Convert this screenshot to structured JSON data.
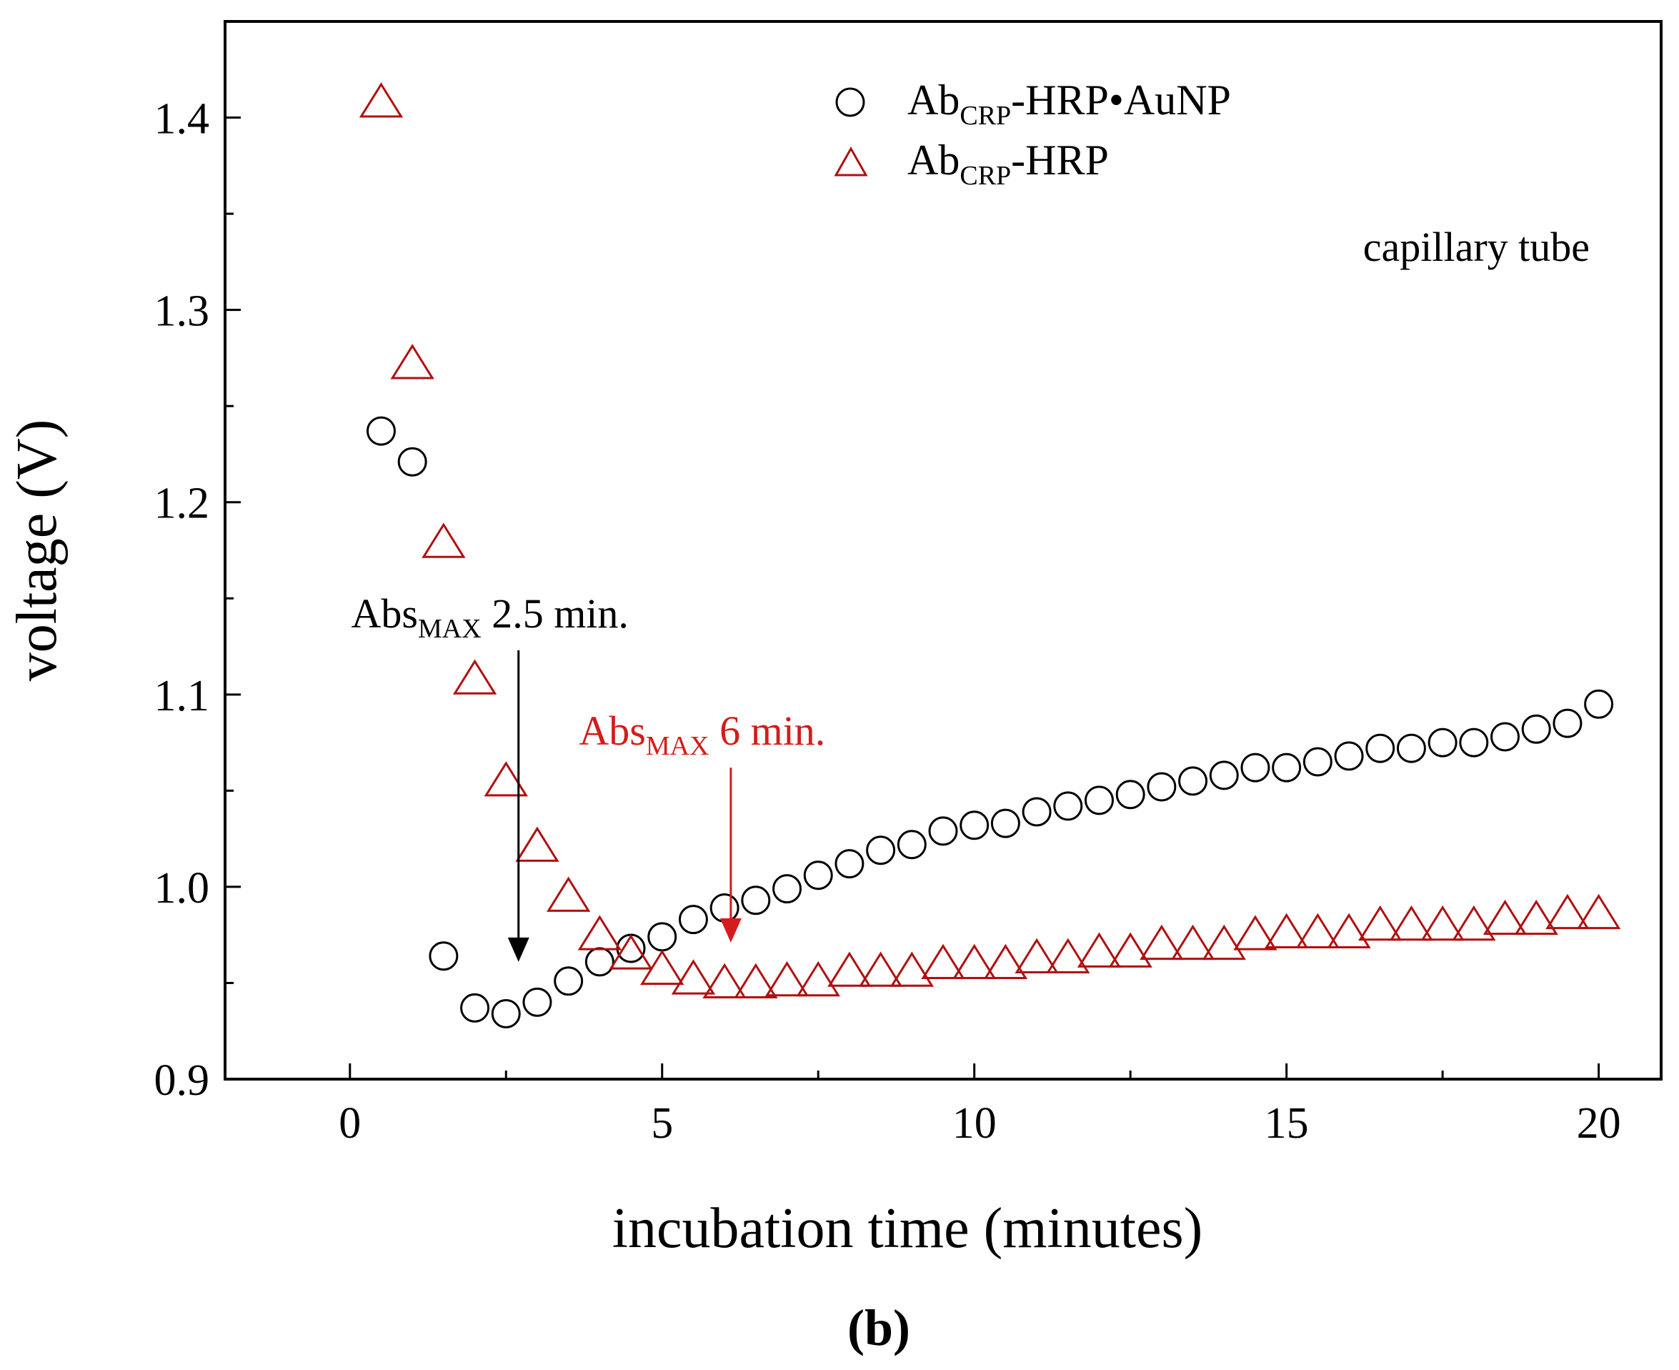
{
  "chart_data": {
    "type": "scatter",
    "xlabel": "incubation time (minutes)",
    "ylabel": "voltage (V)",
    "xlim": [
      -2,
      21
    ],
    "ylim": [
      0.9,
      1.45
    ],
    "xticks": [
      0,
      5,
      10,
      15,
      20
    ],
    "xtick_labels": [
      "0",
      "5",
      "10",
      "15",
      "20"
    ],
    "yticks": [
      0.9,
      1.0,
      1.1,
      1.2,
      1.3,
      1.4
    ],
    "ytick_labels": [
      "0.9",
      "1.0",
      "1.1",
      "1.2",
      "1.3",
      "1.4"
    ],
    "grid": false,
    "legend_position": "top-right",
    "series": [
      {
        "name": "AbCRP-HRP•AuNP",
        "name_parts": {
          "base": "Ab",
          "sub": "CRP",
          "rest": "-HRP•AuNP"
        },
        "marker": "circle",
        "color": "#000000",
        "x": [
          0.5,
          1.0,
          1.5,
          2.0,
          2.5,
          3.0,
          3.5,
          4.0,
          4.5,
          5.0,
          5.5,
          6.0,
          6.5,
          7.0,
          7.5,
          8.0,
          8.5,
          9.0,
          9.5,
          10.0,
          10.5,
          11.0,
          11.5,
          12.0,
          12.5,
          13.0,
          13.5,
          14.0,
          14.5,
          15.0,
          15.5,
          16.0,
          16.5,
          17.0,
          17.5,
          18.0,
          18.5,
          19.0,
          19.5,
          20.0
        ],
        "values": [
          1.237,
          1.221,
          0.964,
          0.937,
          0.934,
          0.94,
          0.951,
          0.961,
          0.968,
          0.974,
          0.983,
          0.989,
          0.993,
          0.999,
          1.006,
          1.012,
          1.019,
          1.022,
          1.029,
          1.032,
          1.033,
          1.039,
          1.042,
          1.045,
          1.048,
          1.052,
          1.055,
          1.058,
          1.062,
          1.062,
          1.065,
          1.068,
          1.072,
          1.072,
          1.075,
          1.075,
          1.078,
          1.082,
          1.085,
          1.095
        ]
      },
      {
        "name": "AbCRP-HRP",
        "name_parts": {
          "base": "Ab",
          "sub": "CRP",
          "rest": "-HRP"
        },
        "marker": "triangle",
        "color": "#b01010",
        "x": [
          0.5,
          1.0,
          1.5,
          2.0,
          2.5,
          3.0,
          3.5,
          4.0,
          4.5,
          5.0,
          5.5,
          6.0,
          6.5,
          7.0,
          7.5,
          8.0,
          8.5,
          9.0,
          9.5,
          10.0,
          10.5,
          11.0,
          11.5,
          12.0,
          12.5,
          13.0,
          13.5,
          14.0,
          14.5,
          15.0,
          15.5,
          16.0,
          16.5,
          17.0,
          17.5,
          18.0,
          18.5,
          19.0,
          19.5,
          20.0
        ],
        "values": [
          1.408,
          1.272,
          1.179,
          1.108,
          1.055,
          1.021,
          0.995,
          0.975,
          0.965,
          0.957,
          0.952,
          0.95,
          0.95,
          0.951,
          0.951,
          0.956,
          0.956,
          0.956,
          0.96,
          0.96,
          0.96,
          0.963,
          0.963,
          0.966,
          0.966,
          0.97,
          0.97,
          0.97,
          0.975,
          0.976,
          0.976,
          0.976,
          0.98,
          0.98,
          0.98,
          0.98,
          0.983,
          0.983,
          0.986,
          0.986
        ]
      }
    ],
    "annotations": [
      {
        "id": "black",
        "base": "Abs",
        "sub": "MAX",
        "rest": " 2.5 min.",
        "color": "#000000",
        "arrow_x": 2.7,
        "arrow_from_y": 1.123,
        "arrow_to_y": 0.961
      },
      {
        "id": "red",
        "base": "Abs",
        "sub": "MAX",
        "rest": " 6 min.",
        "color": "#d41c1c",
        "arrow_x": 6.1,
        "arrow_from_y": 1.062,
        "arrow_to_y": 0.971
      }
    ],
    "text_annotations": [
      "capillary tube"
    ],
    "panel_label": "(b)"
  }
}
